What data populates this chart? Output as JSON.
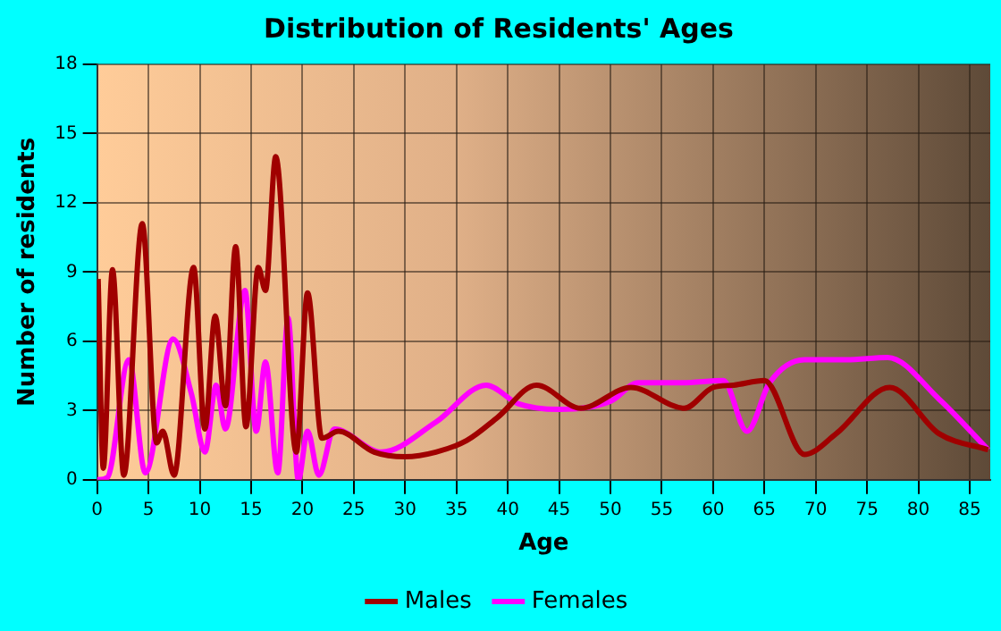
{
  "chart_data": {
    "type": "line",
    "title": "Distribution of Residents' Ages",
    "xlabel": "Age",
    "ylabel": "Number of residents",
    "xlim": [
      0,
      87
    ],
    "xticks": [
      0,
      5,
      10,
      15,
      20,
      25,
      30,
      35,
      40,
      45,
      50,
      55,
      60,
      65,
      70,
      75,
      80,
      85
    ],
    "ylim": [
      0,
      18
    ],
    "yticks": [
      0,
      3,
      6,
      9,
      12,
      15,
      18
    ],
    "grid": true,
    "legend": "bottom",
    "marker": "none",
    "line_style": "solid",
    "series": [
      {
        "name": "Males",
        "color": "#a00000",
        "x": [
          0.1,
          0.6,
          1.5,
          2.6,
          4.4,
          5.8,
          6.4,
          7.5,
          9.4,
          10.5,
          11.5,
          12.5,
          13.5,
          14.5,
          15.7,
          16.4,
          17.4,
          19.4,
          20.5,
          21.9,
          23.5,
          27,
          30,
          33,
          36,
          39,
          42.8,
          47.1,
          52,
          57.2,
          60,
          62,
          65,
          68.9,
          72,
          77.2,
          82,
          86.8
        ],
        "values": [
          8.7,
          0.5,
          9.1,
          0.2,
          11.1,
          1.6,
          2.1,
          0.2,
          9.2,
          2.2,
          7.1,
          3.2,
          10.1,
          2.3,
          9.2,
          8.2,
          14,
          1.2,
          8.1,
          1.8,
          2.1,
          1.2,
          1,
          1.2,
          1.7,
          2.7,
          4.1,
          3.1,
          4,
          3.1,
          4,
          4.1,
          4.3,
          1.1,
          2,
          4,
          2,
          1.3
        ]
      },
      {
        "name": "Females",
        "color": "#ff00ff",
        "x": [
          0,
          1,
          3.1,
          4.7,
          7.4,
          9.2,
          10.5,
          11.6,
          12.5,
          14.4,
          15.5,
          16.4,
          17.6,
          18.6,
          19.6,
          20.5,
          21.6,
          23.1,
          27.7,
          33,
          37.9,
          41,
          45,
          50,
          52.7,
          57,
          61,
          63.3,
          65.5,
          68.9,
          73,
          77,
          82,
          86.8
        ],
        "values": [
          0,
          0.1,
          5.2,
          0.3,
          6.1,
          3.7,
          1.2,
          4.1,
          2.2,
          8.2,
          2.1,
          5.1,
          0.3,
          7,
          0,
          2.1,
          0.2,
          2.2,
          1.2,
          2.5,
          4.1,
          3.3,
          3.05,
          3.4,
          4.2,
          4.2,
          4.3,
          2.1,
          4.2,
          5.2,
          5.2,
          5.3,
          3.5,
          1.3
        ]
      }
    ]
  }
}
